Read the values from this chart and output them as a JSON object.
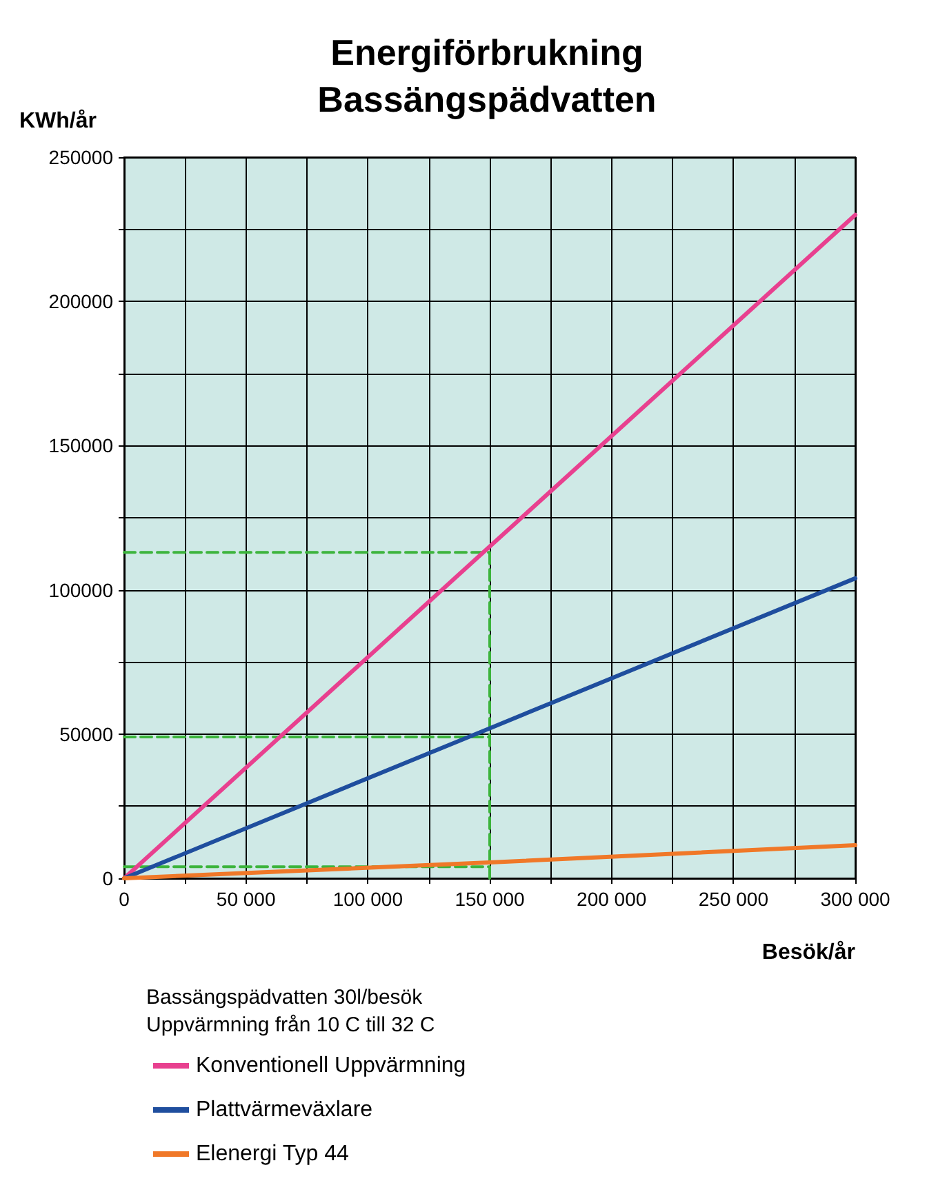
{
  "chart_data": {
    "type": "line",
    "title": "Energiförbrukning\nBassängspädvatten",
    "ylabel": "KWh/år",
    "xlabel": "Besök/år",
    "annotations": [
      "Bassängspädvatten 30l/besök",
      "Uppvärmning från 10 C till 32 C"
    ],
    "xlim": [
      0,
      300000
    ],
    "xticks": [
      0,
      {
        "value": 25000,
        "label": null
      },
      {
        "value": 50000,
        "label": "50 000"
      },
      {
        "value": 75000,
        "label": null
      },
      {
        "value": 100000,
        "label": "100 000"
      },
      {
        "value": 125000,
        "label": null
      },
      {
        "value": 150000,
        "label": "150 000"
      },
      {
        "value": 175000,
        "label": null
      },
      {
        "value": 200000,
        "label": "200 000"
      },
      {
        "value": 225000,
        "label": null
      },
      {
        "value": 250000,
        "label": "250 000"
      },
      {
        "value": 275000,
        "label": null
      },
      {
        "value": 300000,
        "label": "300 000"
      }
    ],
    "ylim": [
      0,
      250000
    ],
    "yticks": [
      0,
      {
        "value": 25000,
        "label": null
      },
      50000,
      {
        "value": 75000,
        "label": null
      },
      100000,
      {
        "value": 125000,
        "label": null
      },
      150000,
      {
        "value": 175000,
        "label": null
      },
      200000,
      {
        "value": 225000,
        "label": null
      },
      250000
    ],
    "grid": true,
    "legend": "bottom left",
    "marker": "none",
    "series": [
      {
        "name": "Konventionell Uppvärmning",
        "color": "#e8408f",
        "x": [
          0,
          150000,
          300000
        ],
        "values": [
          0,
          115000,
          230000
        ]
      },
      {
        "name": "Plattvärmeväxlare",
        "color": "#1f4e9e",
        "x": [
          0,
          150000,
          300000
        ],
        "values": [
          0,
          52000,
          104000
        ]
      },
      {
        "name": "Elenergi Typ 44",
        "color": "#f07828",
        "x": [
          0,
          150000,
          300000
        ],
        "values": [
          0,
          5500,
          11500
        ]
      },
      {
        "color": "#3cb43c",
        "line_style": "dashed",
        "x": [
          0,
          150000
        ],
        "values": [
          113000,
          113000
        ]
      },
      {
        "color": "#3cb43c",
        "line_style": "dashed",
        "x": [
          0,
          150000
        ],
        "values": [
          49000,
          49000
        ]
      },
      {
        "color": "#3cb43c",
        "line_style": "dashed",
        "x": [
          0,
          150000
        ],
        "values": [
          4000,
          4000
        ]
      },
      {
        "color": "#3cb43c",
        "line_style": "dashed",
        "x": [
          150000,
          150000
        ],
        "values": [
          0,
          113000
        ]
      }
    ]
  }
}
